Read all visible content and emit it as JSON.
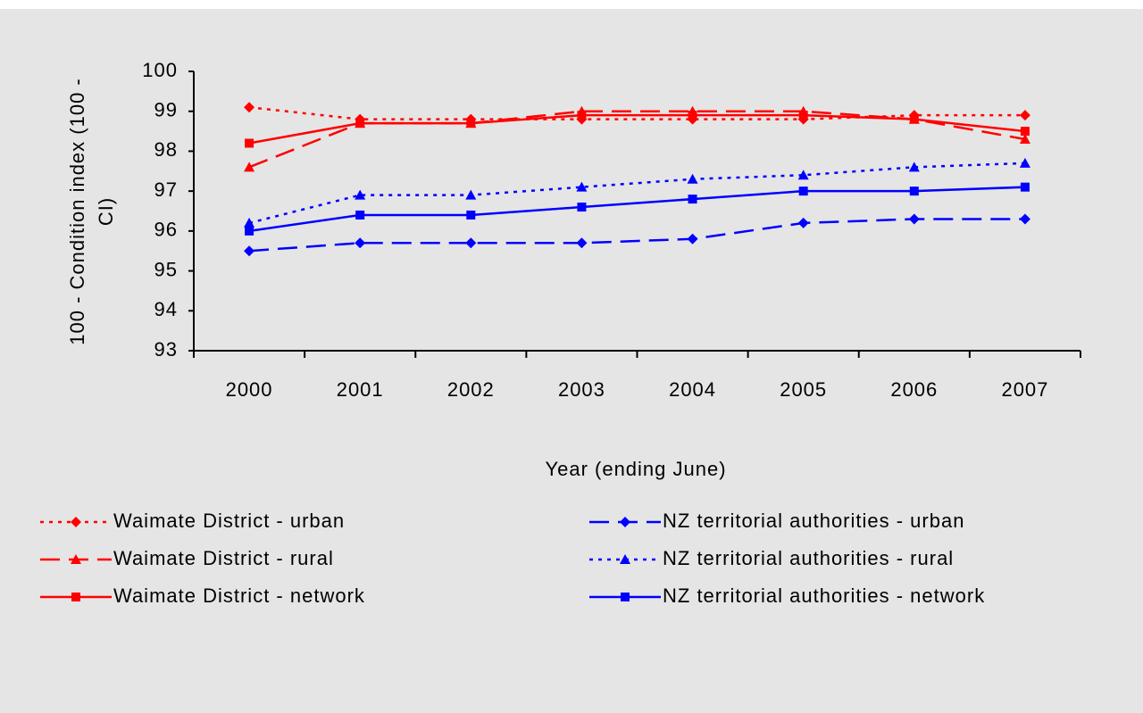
{
  "chart_data": {
    "type": "line",
    "y_label": [
      "100 - Condition index (100 -",
      "CI)"
    ],
    "x_label": "Year (ending June)",
    "categories": [
      "2000",
      "2001",
      "2002",
      "2003",
      "2004",
      "2005",
      "2006",
      "2007"
    ],
    "ylim": [
      93,
      100
    ],
    "yticks": [
      93,
      94,
      95,
      96,
      97,
      98,
      99,
      100
    ],
    "series": [
      {
        "name": "Waimate District - urban",
        "color": "#ff0000",
        "dash": "dotted",
        "marker": "diamond",
        "values": [
          99.1,
          98.8,
          98.8,
          98.8,
          98.8,
          98.8,
          98.9,
          98.9
        ]
      },
      {
        "name": "Waimate District - rural",
        "color": "#ff0000",
        "dash": "dashed",
        "marker": "triangle",
        "values": [
          97.6,
          98.7,
          98.7,
          99.0,
          99.0,
          99.0,
          98.8,
          98.3
        ]
      },
      {
        "name": "Waimate District - network",
        "color": "#ff0000",
        "dash": "solid",
        "marker": "square",
        "values": [
          98.2,
          98.7,
          98.7,
          98.9,
          98.9,
          98.9,
          98.8,
          98.5
        ]
      },
      {
        "name": "NZ territorial authorities - urban",
        "color": "#0000ff",
        "dash": "dashed",
        "marker": "diamond",
        "values": [
          95.5,
          95.7,
          95.7,
          95.7,
          95.8,
          96.2,
          96.3,
          96.3
        ]
      },
      {
        "name": "NZ territorial authorities - rural",
        "color": "#0000ff",
        "dash": "dotted",
        "marker": "triangle",
        "values": [
          96.2,
          96.9,
          96.9,
          97.1,
          97.3,
          97.4,
          97.6,
          97.7
        ]
      },
      {
        "name": "NZ territorial authorities - network",
        "color": "#0000ff",
        "dash": "solid",
        "marker": "square",
        "values": [
          96.0,
          96.4,
          96.4,
          96.6,
          96.8,
          97.0,
          97.0,
          97.1
        ]
      }
    ]
  }
}
